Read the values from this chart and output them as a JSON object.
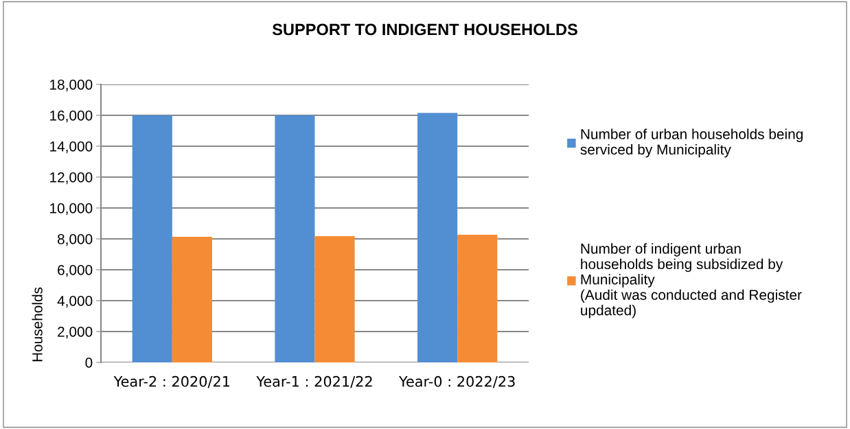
{
  "chart_data": {
    "type": "bar",
    "title": "SUPPORT TO INDIGENT HOUSEHOLDS",
    "ylabel": "Households",
    "categories": [
      "Year-2 : 2020/21",
      "Year-1 : 2021/22",
      "Year-0 : 2022/23"
    ],
    "series": [
      {
        "name": "Number of urban households being\nserviced by Municipality",
        "color": "#528ed2",
        "values": [
          16000,
          16000,
          16150
        ]
      },
      {
        "name": "Number of indigent urban\nhouseholds being subsidized by\nMunicipality\n(Audit was conducted and Register\nupdated)",
        "color": "#f58c35",
        "values": [
          8130,
          8180,
          8270
        ]
      }
    ],
    "ylim": [
      0,
      18000
    ],
    "yticks": [
      {
        "value": 0,
        "label": "0"
      },
      {
        "value": 2000,
        "label": "2,000"
      },
      {
        "value": 4000,
        "label": "4,000"
      },
      {
        "value": 6000,
        "label": "6,000"
      },
      {
        "value": 8000,
        "label": "8,000"
      },
      {
        "value": 10000,
        "label": "10,000"
      },
      {
        "value": 12000,
        "label": "12,000"
      },
      {
        "value": 14000,
        "label": "14,000"
      },
      {
        "value": 16000,
        "label": "16,000"
      },
      {
        "value": 18000,
        "label": "18,000"
      }
    ],
    "grid": "y",
    "legend": "right"
  }
}
